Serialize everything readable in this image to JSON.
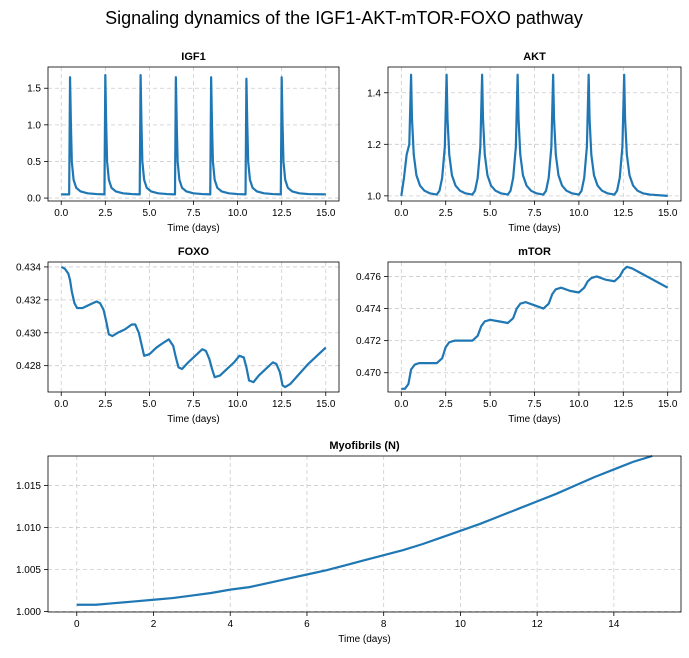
{
  "figure_title": "Signaling dynamics of the IGF1-AKT-mTOR-FOXO pathway",
  "colors": {
    "line": "#1f77b4",
    "grid": "#cccccc"
  },
  "chart_data": [
    {
      "id": "igf1",
      "type": "line",
      "title": "IGF1",
      "xlabel": "Time (days)",
      "ylabel": "",
      "xlim": [
        -0.75,
        15.75
      ],
      "ylim": [
        -0.04,
        1.79
      ],
      "xticks": [
        0,
        2.5,
        5,
        7.5,
        10,
        12.5,
        15
      ],
      "xtick_labels": [
        "0.0",
        "2.5",
        "5.0",
        "7.5",
        "10.0",
        "12.5",
        "15.0"
      ],
      "yticks": [
        0,
        0.5,
        1.0,
        1.5
      ],
      "ytick_labels": [
        "0.0",
        "0.5",
        "1.0",
        "1.5"
      ],
      "grid": true,
      "series": [
        {
          "name": "IGF1",
          "x": [
            0,
            0.45,
            0.5,
            0.55,
            0.6,
            0.7,
            0.85,
            1.1,
            1.5,
            2.0,
            2.45,
            2.5,
            2.55,
            2.6,
            2.7,
            2.85,
            3.1,
            3.5,
            4.0,
            4.45,
            4.5,
            4.55,
            4.6,
            4.7,
            4.85,
            5.1,
            5.5,
            6.0,
            6.45,
            6.5,
            6.55,
            6.6,
            6.7,
            6.85,
            7.1,
            7.5,
            8.0,
            8.45,
            8.5,
            8.55,
            8.6,
            8.7,
            8.85,
            9.1,
            9.5,
            10.0,
            10.45,
            10.5,
            10.55,
            10.6,
            10.7,
            10.85,
            11.1,
            11.5,
            12.0,
            12.45,
            12.5,
            12.55,
            12.6,
            12.7,
            12.85,
            13.1,
            13.5,
            14.0,
            15.0
          ],
          "y": [
            0.05,
            0.05,
            1.65,
            1.0,
            0.5,
            0.25,
            0.14,
            0.09,
            0.065,
            0.055,
            0.05,
            1.68,
            1.0,
            0.5,
            0.25,
            0.14,
            0.09,
            0.065,
            0.055,
            0.05,
            1.68,
            1.0,
            0.5,
            0.25,
            0.14,
            0.09,
            0.065,
            0.055,
            0.05,
            1.65,
            1.0,
            0.5,
            0.25,
            0.14,
            0.09,
            0.065,
            0.055,
            0.05,
            1.65,
            1.0,
            0.5,
            0.25,
            0.14,
            0.09,
            0.065,
            0.055,
            0.05,
            1.63,
            1.0,
            0.5,
            0.25,
            0.14,
            0.09,
            0.065,
            0.055,
            0.05,
            1.65,
            1.0,
            0.5,
            0.25,
            0.14,
            0.09,
            0.065,
            0.055,
            0.05
          ]
        }
      ]
    },
    {
      "id": "akt",
      "type": "line",
      "title": "AKT",
      "xlabel": "Time (days)",
      "ylabel": "",
      "xlim": [
        -0.75,
        15.75
      ],
      "ylim": [
        0.98,
        1.5
      ],
      "xticks": [
        0,
        2.5,
        5,
        7.5,
        10,
        12.5,
        15
      ],
      "xtick_labels": [
        "0.0",
        "2.5",
        "5.0",
        "7.5",
        "10.0",
        "12.5",
        "15.0"
      ],
      "yticks": [
        1.0,
        1.2,
        1.4
      ],
      "ytick_labels": [
        "1.0",
        "1.2",
        "1.4"
      ],
      "grid": true,
      "series": [
        {
          "name": "AKT",
          "x": [
            0,
            0.15,
            0.3,
            0.45,
            0.55,
            0.6,
            0.7,
            0.85,
            1.05,
            1.3,
            1.6,
            2.0,
            2.15,
            2.3,
            2.45,
            2.55,
            2.6,
            2.7,
            2.85,
            3.05,
            3.3,
            3.6,
            4.0,
            4.15,
            4.3,
            4.45,
            4.55,
            4.6,
            4.7,
            4.85,
            5.05,
            5.3,
            5.6,
            6.0,
            6.15,
            6.3,
            6.45,
            6.55,
            6.6,
            6.7,
            6.85,
            7.05,
            7.3,
            7.6,
            8.0,
            8.15,
            8.3,
            8.45,
            8.55,
            8.6,
            8.7,
            8.85,
            9.05,
            9.3,
            9.6,
            10.0,
            10.15,
            10.3,
            10.45,
            10.55,
            10.6,
            10.7,
            10.85,
            11.05,
            11.3,
            11.6,
            12.0,
            12.15,
            12.3,
            12.45,
            12.55,
            12.6,
            12.7,
            12.85,
            13.05,
            13.3,
            13.6,
            14.0,
            15.0
          ],
          "y": [
            1.0,
            1.07,
            1.16,
            1.2,
            1.47,
            1.3,
            1.16,
            1.08,
            1.04,
            1.02,
            1.01,
            1.005,
            1.02,
            1.07,
            1.19,
            1.47,
            1.3,
            1.16,
            1.08,
            1.04,
            1.02,
            1.01,
            1.005,
            1.02,
            1.07,
            1.19,
            1.47,
            1.3,
            1.16,
            1.08,
            1.04,
            1.02,
            1.01,
            1.005,
            1.02,
            1.07,
            1.19,
            1.47,
            1.3,
            1.16,
            1.08,
            1.04,
            1.02,
            1.01,
            1.005,
            1.02,
            1.07,
            1.19,
            1.47,
            1.3,
            1.16,
            1.08,
            1.04,
            1.02,
            1.01,
            1.005,
            1.02,
            1.07,
            1.19,
            1.47,
            1.3,
            1.16,
            1.08,
            1.04,
            1.02,
            1.01,
            1.005,
            1.02,
            1.07,
            1.19,
            1.47,
            1.3,
            1.16,
            1.08,
            1.04,
            1.02,
            1.01,
            1.005,
            1.0
          ]
        }
      ]
    },
    {
      "id": "foxo",
      "type": "line",
      "title": "FOXO",
      "xlabel": "Time (days)",
      "ylabel": "",
      "xlim": [
        -0.75,
        15.75
      ],
      "ylim": [
        0.4264,
        0.4343
      ],
      "xticks": [
        0,
        2.5,
        5,
        7.5,
        10,
        12.5,
        15
      ],
      "xtick_labels": [
        "0.0",
        "2.5",
        "5.0",
        "7.5",
        "10.0",
        "12.5",
        "15.0"
      ],
      "yticks": [
        0.428,
        0.43,
        0.432,
        0.434
      ],
      "ytick_labels": [
        "0.428",
        "0.430",
        "0.432",
        "0.434"
      ],
      "grid": true,
      "series": [
        {
          "name": "FOXO",
          "x": [
            0,
            0.2,
            0.4,
            0.5,
            0.6,
            0.75,
            0.9,
            1.2,
            1.6,
            2.0,
            2.2,
            2.4,
            2.55,
            2.7,
            2.9,
            3.2,
            3.6,
            4.0,
            4.2,
            4.4,
            4.55,
            4.7,
            5.0,
            5.4,
            5.8,
            6.1,
            6.35,
            6.5,
            6.65,
            6.85,
            7.2,
            7.6,
            8.0,
            8.2,
            8.4,
            8.55,
            8.7,
            9.0,
            9.4,
            9.8,
            10.1,
            10.35,
            10.5,
            10.65,
            10.9,
            11.2,
            11.6,
            12.0,
            12.2,
            12.4,
            12.55,
            12.7,
            13.0,
            13.5,
            14.0,
            14.5,
            15.0
          ],
          "y": [
            0.434,
            0.4339,
            0.4336,
            0.4332,
            0.4325,
            0.4318,
            0.4315,
            0.4315,
            0.4317,
            0.4319,
            0.4318,
            0.4314,
            0.4307,
            0.4299,
            0.4298,
            0.43,
            0.4302,
            0.4305,
            0.4305,
            0.43,
            0.4293,
            0.4286,
            0.4287,
            0.4291,
            0.4294,
            0.4296,
            0.4292,
            0.4285,
            0.4279,
            0.4278,
            0.4282,
            0.4286,
            0.429,
            0.4289,
            0.4284,
            0.4278,
            0.4273,
            0.4274,
            0.4278,
            0.4282,
            0.4286,
            0.4285,
            0.4279,
            0.4271,
            0.427,
            0.4274,
            0.4278,
            0.4282,
            0.4281,
            0.4276,
            0.4268,
            0.4267,
            0.4269,
            0.4275,
            0.4281,
            0.4286,
            0.4291
          ]
        }
      ]
    },
    {
      "id": "mtor",
      "type": "line",
      "title": "mTOR",
      "xlabel": "Time (days)",
      "ylabel": "",
      "xlim": [
        -0.75,
        15.75
      ],
      "ylim": [
        0.4688,
        0.4769
      ],
      "xticks": [
        0,
        2.5,
        5,
        7.5,
        10,
        12.5,
        15
      ],
      "xtick_labels": [
        "0.0",
        "2.5",
        "5.0",
        "7.5",
        "10.0",
        "12.5",
        "15.0"
      ],
      "yticks": [
        0.47,
        0.472,
        0.474,
        0.476
      ],
      "ytick_labels": [
        "0.470",
        "0.472",
        "0.474",
        "0.476"
      ],
      "grid": true,
      "series": [
        {
          "name": "mTOR",
          "x": [
            0,
            0.2,
            0.4,
            0.55,
            0.75,
            1.0,
            1.5,
            2.0,
            2.3,
            2.5,
            2.7,
            3.0,
            3.5,
            4.0,
            4.3,
            4.5,
            4.7,
            5.0,
            5.5,
            6.0,
            6.3,
            6.5,
            6.7,
            7.0,
            7.5,
            8.0,
            8.3,
            8.5,
            8.7,
            9.0,
            9.5,
            10.0,
            10.3,
            10.5,
            10.7,
            11.0,
            11.5,
            12.0,
            12.3,
            12.5,
            12.7,
            13.0,
            13.5,
            14.0,
            14.5,
            15.0
          ],
          "y": [
            0.469,
            0.469,
            0.4693,
            0.4702,
            0.4705,
            0.4706,
            0.4706,
            0.4706,
            0.4709,
            0.4716,
            0.4719,
            0.472,
            0.472,
            0.472,
            0.4723,
            0.4729,
            0.4732,
            0.4733,
            0.4732,
            0.4731,
            0.4734,
            0.474,
            0.4743,
            0.4744,
            0.4742,
            0.474,
            0.4743,
            0.4749,
            0.4752,
            0.4753,
            0.4751,
            0.475,
            0.4753,
            0.4757,
            0.4759,
            0.476,
            0.4758,
            0.4757,
            0.476,
            0.4764,
            0.4766,
            0.4765,
            0.4762,
            0.4759,
            0.4756,
            0.4753
          ]
        }
      ]
    },
    {
      "id": "myofibrils",
      "type": "line",
      "title": "Myofibrils (N)",
      "xlabel": "Time (days)",
      "ylabel": "",
      "xlim": [
        -0.75,
        15.75
      ],
      "ylim": [
        0.99994,
        1.0185
      ],
      "xticks": [
        0,
        2,
        4,
        6,
        8,
        10,
        12,
        14
      ],
      "xtick_labels": [
        "0",
        "2",
        "4",
        "6",
        "8",
        "10",
        "12",
        "14"
      ],
      "yticks": [
        1.0,
        1.005,
        1.01,
        1.015
      ],
      "ytick_labels": [
        "1.000",
        "1.005",
        "1.010",
        "1.015"
      ],
      "grid": true,
      "series": [
        {
          "name": "Myofibrils",
          "x": [
            0,
            0.5,
            1,
            1.5,
            2,
            2.5,
            3,
            3.5,
            4,
            4.5,
            5,
            5.5,
            6,
            6.5,
            7,
            7.5,
            8,
            8.5,
            9,
            9.5,
            10,
            10.5,
            11,
            11.5,
            12,
            12.5,
            13,
            13.5,
            14,
            14.5,
            15
          ],
          "y": [
            1.0008,
            1.0008,
            1.001,
            1.0012,
            1.0014,
            1.0016,
            1.0019,
            1.0022,
            1.0026,
            1.0029,
            1.0034,
            1.0039,
            1.0044,
            1.0049,
            1.0055,
            1.0061,
            1.0067,
            1.0073,
            1.008,
            1.0088,
            1.0096,
            1.0104,
            1.0113,
            1.0122,
            1.0131,
            1.014,
            1.015,
            1.016,
            1.0169,
            1.0178,
            1.0185
          ]
        }
      ]
    }
  ]
}
